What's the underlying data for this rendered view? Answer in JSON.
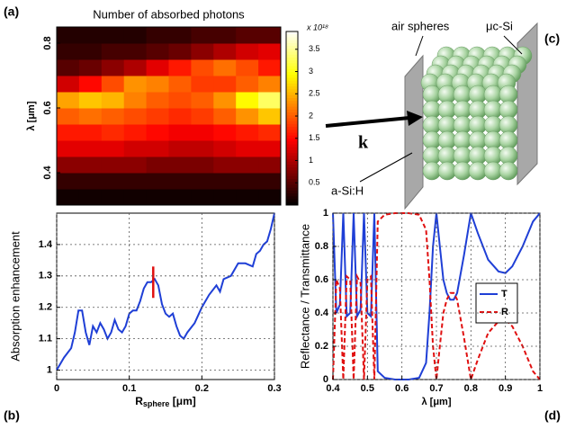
{
  "chart_data": [
    {
      "type": "heatmap",
      "panel_label": "(a)",
      "title": "Number of absorbed photons",
      "ylabel": "λ [μm]",
      "x": [
        0.015,
        0.045,
        0.075,
        0.105,
        0.135,
        0.165,
        0.195,
        0.225,
        0.255,
        0.285
      ],
      "y": [
        0.325,
        0.375,
        0.425,
        0.475,
        0.525,
        0.575,
        0.625,
        0.675,
        0.725,
        0.775,
        0.825
      ],
      "values": [
        [
          0.1,
          0.1,
          0.1,
          0.1,
          0.1,
          0.1,
          0.1,
          0.1,
          0.1,
          0.1
        ],
        [
          0.3,
          0.3,
          0.3,
          0.3,
          0.3,
          0.3,
          0.3,
          0.3,
          0.3,
          0.3
        ],
        [
          0.8,
          0.8,
          0.8,
          0.8,
          0.7,
          0.7,
          0.7,
          0.8,
          0.8,
          0.8
        ],
        [
          1.3,
          1.3,
          1.3,
          1.2,
          1.2,
          1.1,
          1.1,
          1.2,
          1.3,
          1.3
        ],
        [
          1.6,
          1.6,
          1.7,
          1.6,
          1.5,
          1.4,
          1.4,
          1.5,
          1.6,
          1.7
        ],
        [
          2.0,
          2.1,
          2.0,
          1.9,
          1.8,
          1.7,
          1.8,
          2.0,
          2.3,
          2.6
        ],
        [
          2.4,
          2.6,
          2.5,
          2.2,
          2.0,
          1.9,
          2.0,
          2.3,
          2.9,
          3.3
        ],
        [
          1.2,
          1.5,
          1.9,
          2.3,
          2.2,
          2.0,
          1.8,
          1.8,
          2.0,
          2.2
        ],
        [
          0.5,
          0.6,
          0.8,
          1.0,
          1.3,
          1.6,
          1.9,
          2.1,
          1.9,
          1.6
        ],
        [
          0.3,
          0.3,
          0.4,
          0.4,
          0.5,
          0.6,
          0.8,
          1.0,
          1.2,
          1.3
        ],
        [
          0.2,
          0.2,
          0.2,
          0.2,
          0.3,
          0.3,
          0.4,
          0.4,
          0.5,
          0.5
        ]
      ],
      "xlim": [
        0,
        0.3
      ],
      "ylim": [
        0.3,
        0.85
      ],
      "yticks": [
        0.4,
        0.6,
        0.8
      ],
      "colormap": "hot",
      "clim": [
        0,
        3.9
      ],
      "cticks": [
        0.5,
        1,
        1.5,
        2,
        2.5,
        3,
        3.5
      ],
      "colorbar_label": "x 10¹⁸"
    },
    {
      "type": "line",
      "panel_label": "(b)",
      "ylabel": "Absorption enhancement",
      "xlabel": {
        "main": "R",
        "sub": "sphere",
        "rest": " [μm]"
      },
      "x": [
        0,
        0.01,
        0.02,
        0.025,
        0.03,
        0.035,
        0.04,
        0.045,
        0.05,
        0.055,
        0.06,
        0.065,
        0.07,
        0.075,
        0.08,
        0.085,
        0.09,
        0.095,
        0.1,
        0.105,
        0.11,
        0.115,
        0.12,
        0.125,
        0.13,
        0.135,
        0.14,
        0.145,
        0.15,
        0.155,
        0.16,
        0.165,
        0.17,
        0.175,
        0.18,
        0.19,
        0.2,
        0.21,
        0.22,
        0.225,
        0.23,
        0.24,
        0.25,
        0.26,
        0.27,
        0.275,
        0.28,
        0.285,
        0.29,
        0.295,
        0.3
      ],
      "values": [
        1.0,
        1.04,
        1.07,
        1.12,
        1.19,
        1.19,
        1.12,
        1.08,
        1.14,
        1.12,
        1.15,
        1.13,
        1.1,
        1.12,
        1.16,
        1.13,
        1.12,
        1.14,
        1.18,
        1.19,
        1.19,
        1.22,
        1.26,
        1.28,
        1.28,
        1.29,
        1.27,
        1.21,
        1.18,
        1.17,
        1.18,
        1.14,
        1.11,
        1.1,
        1.12,
        1.15,
        1.2,
        1.24,
        1.27,
        1.25,
        1.29,
        1.3,
        1.34,
        1.34,
        1.33,
        1.37,
        1.38,
        1.4,
        1.41,
        1.45,
        1.5
      ],
      "color": "#1f3fd6",
      "marker": {
        "x": 0.133,
        "y": [
          1.23,
          1.33
        ],
        "color": "#e01010"
      },
      "xlim": [
        0,
        0.3
      ],
      "ylim": [
        0.97,
        1.5
      ],
      "xticks": [
        0,
        0.1,
        0.2,
        0.3
      ],
      "yticks": [
        1,
        1.1,
        1.2,
        1.3,
        1.4
      ],
      "grid": true
    },
    {
      "type": "line",
      "panel_label": "(d)",
      "ylabel": "Reflectance / Transmittance",
      "xlabel": "λ [μm]",
      "x": [
        0.4,
        0.41,
        0.42,
        0.43,
        0.44,
        0.45,
        0.46,
        0.47,
        0.48,
        0.49,
        0.5,
        0.51,
        0.52,
        0.53,
        0.55,
        0.58,
        0.62,
        0.65,
        0.67,
        0.68,
        0.69,
        0.7,
        0.71,
        0.72,
        0.73,
        0.74,
        0.75,
        0.76,
        0.78,
        0.8,
        0.82,
        0.85,
        0.88,
        0.9,
        0.92,
        0.95,
        0.98,
        1.0
      ],
      "series": [
        {
          "name": "T",
          "color": "#1f3fd6",
          "dash": false,
          "values": [
            1.0,
            0.4,
            0.45,
            1.0,
            0.38,
            0.4,
            1.0,
            0.38,
            0.42,
            1.0,
            0.4,
            0.38,
            1.0,
            0.05,
            0.01,
            0.0,
            0.0,
            0.01,
            0.1,
            0.4,
            0.8,
            1.0,
            0.8,
            0.6,
            0.52,
            0.48,
            0.48,
            0.52,
            0.75,
            1.0,
            0.88,
            0.72,
            0.65,
            0.64,
            0.68,
            0.8,
            0.95,
            1.0
          ]
        },
        {
          "name": "R",
          "color": "#e01010",
          "dash": true,
          "values": [
            0.0,
            0.6,
            0.55,
            0.0,
            0.62,
            0.6,
            0.0,
            0.62,
            0.58,
            0.0,
            0.6,
            0.62,
            0.0,
            0.95,
            0.99,
            1.0,
            1.0,
            0.99,
            0.9,
            0.6,
            0.2,
            0.0,
            0.2,
            0.4,
            0.48,
            0.52,
            0.52,
            0.48,
            0.25,
            0.0,
            0.12,
            0.28,
            0.35,
            0.36,
            0.32,
            0.2,
            0.05,
            0.0
          ]
        }
      ],
      "legend": "right",
      "xlim": [
        0.4,
        1
      ],
      "ylim": [
        0,
        1
      ],
      "xticks": [
        0.4,
        0.5,
        0.6,
        0.7,
        0.8,
        0.9,
        1
      ],
      "yticks": [
        0,
        0.2,
        0.4,
        0.6,
        0.8,
        1
      ],
      "grid": true
    }
  ],
  "diagram": {
    "panel_label": "(c)",
    "labels": {
      "spheres": "air spheres",
      "top_layer": "μc-Si",
      "bottom_layer": "a-Si:H",
      "wavevector": "k"
    }
  }
}
